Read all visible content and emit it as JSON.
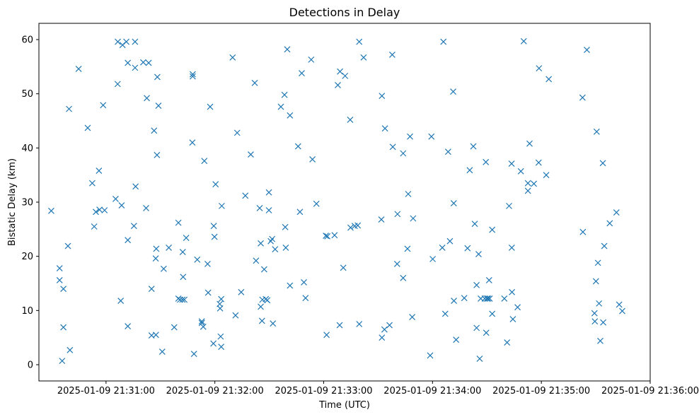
{
  "chart_data": {
    "type": "scatter",
    "title": "Detections in Delay",
    "xlabel": "Time (UTC)",
    "ylabel": "Bistatic Delay (km)",
    "marker": "x",
    "color": "#1f77b4",
    "grid": false,
    "x_unit": "seconds after 2025-01-09 21:31:00 UTC",
    "xlim": [
      -37,
      300
    ],
    "ylim": [
      -3,
      63
    ],
    "x_ticks": [
      {
        "value": 0,
        "label": "2025-01-09 21:31:00"
      },
      {
        "value": 60,
        "label": "2025-01-09 21:32:00"
      },
      {
        "value": 120,
        "label": "2025-01-09 21:33:00"
      },
      {
        "value": 180,
        "label": "2025-01-09 21:34:00"
      },
      {
        "value": 240,
        "label": "2025-01-09 21:35:00"
      },
      {
        "value": 300,
        "label": "2025-01-09 21:36:00"
      }
    ],
    "y_ticks": [
      {
        "value": 0,
        "label": "0"
      },
      {
        "value": 10,
        "label": "10"
      },
      {
        "value": 20,
        "label": "20"
      },
      {
        "value": 30,
        "label": "30"
      },
      {
        "value": 40,
        "label": "40"
      },
      {
        "value": 50,
        "label": "50"
      },
      {
        "value": 60,
        "label": "60"
      }
    ],
    "points": [
      [
        -30.2,
        28.4
      ],
      [
        -25.6,
        17.8
      ],
      [
        -25.6,
        15.6
      ],
      [
        -24.2,
        0.7
      ],
      [
        -23.5,
        6.9
      ],
      [
        -23.5,
        14.0
      ],
      [
        -21.0,
        21.9
      ],
      [
        -20.4,
        47.2
      ],
      [
        -19.9,
        2.7
      ],
      [
        -15.1,
        54.6
      ],
      [
        -10.1,
        43.7
      ],
      [
        -7.6,
        33.5
      ],
      [
        -6.5,
        25.5
      ],
      [
        -5.6,
        28.2
      ],
      [
        -3.9,
        35.8
      ],
      [
        -3.6,
        28.6
      ],
      [
        -0.8,
        28.5
      ],
      [
        -1.6,
        47.9
      ],
      [
        5.3,
        30.6
      ],
      [
        6.5,
        59.6
      ],
      [
        6.4,
        51.8
      ],
      [
        8.1,
        11.8
      ],
      [
        8.6,
        29.4
      ],
      [
        9.1,
        59.0
      ],
      [
        11.2,
        59.6
      ],
      [
        12.0,
        55.7
      ],
      [
        12.0,
        23.0
      ],
      [
        12.0,
        7.1
      ],
      [
        16.0,
        59.6
      ],
      [
        16.0,
        54.8
      ],
      [
        15.4,
        25.6
      ],
      [
        16.3,
        32.9
      ],
      [
        20.5,
        55.8
      ],
      [
        22.1,
        28.9
      ],
      [
        22.5,
        49.2
      ],
      [
        23.5,
        55.7
      ],
      [
        25.1,
        14.0
      ],
      [
        25.1,
        5.4
      ],
      [
        26.5,
        43.2
      ],
      [
        27.5,
        5.5
      ],
      [
        27.4,
        19.6
      ],
      [
        28.3,
        53.1
      ],
      [
        27.7,
        21.4
      ],
      [
        28.1,
        38.7
      ],
      [
        28.9,
        47.8
      ],
      [
        31.0,
        2.4
      ],
      [
        31.8,
        17.7
      ],
      [
        34.6,
        21.6
      ],
      [
        37.6,
        6.9
      ],
      [
        39.9,
        26.2
      ],
      [
        39.9,
        12.2
      ],
      [
        40.8,
        12.0
      ],
      [
        42.1,
        12.0
      ],
      [
        43.2,
        12.0
      ],
      [
        42.3,
        20.8
      ],
      [
        42.5,
        16.2
      ],
      [
        44.2,
        23.4
      ],
      [
        47.8,
        53.6
      ],
      [
        47.8,
        53.2
      ],
      [
        47.6,
        41.0
      ],
      [
        48.5,
        2.0
      ],
      [
        50.3,
        19.4
      ],
      [
        52.8,
        8.0
      ],
      [
        52.8,
        7.7
      ],
      [
        53.6,
        7.0
      ],
      [
        54.2,
        37.6
      ],
      [
        56.0,
        18.6
      ],
      [
        56.3,
        13.3
      ],
      [
        57.4,
        47.6
      ],
      [
        59.4,
        25.6
      ],
      [
        59.8,
        23.6
      ],
      [
        60.4,
        33.3
      ],
      [
        59.2,
        3.9
      ],
      [
        62.7,
        11.2
      ],
      [
        62.9,
        10.4
      ],
      [
        63.2,
        5.2
      ],
      [
        63.5,
        12.1
      ],
      [
        63.5,
        3.3
      ],
      [
        63.8,
        29.3
      ],
      [
        69.8,
        56.7
      ],
      [
        71.4,
        9.1
      ],
      [
        72.3,
        42.8
      ],
      [
        74.5,
        13.4
      ],
      [
        76.8,
        31.2
      ],
      [
        79.8,
        38.8
      ],
      [
        82.0,
        52.0
      ],
      [
        82.7,
        19.2
      ],
      [
        84.7,
        28.9
      ],
      [
        85.3,
        22.4
      ],
      [
        85.3,
        10.7
      ],
      [
        86.0,
        8.1
      ],
      [
        86.2,
        12.0
      ],
      [
        87.2,
        17.6
      ],
      [
        88.1,
        12.1
      ],
      [
        88.9,
        11.9
      ],
      [
        89.8,
        31.8
      ],
      [
        89.8,
        28.5
      ],
      [
        90.8,
        22.8
      ],
      [
        91.6,
        23.2
      ],
      [
        92.0,
        7.6
      ],
      [
        93.2,
        21.3
      ],
      [
        96.4,
        47.6
      ],
      [
        98.4,
        49.8
      ],
      [
        98.8,
        25.4
      ],
      [
        99.1,
        21.6
      ],
      [
        99.9,
        58.2
      ],
      [
        101.4,
        46.0
      ],
      [
        101.4,
        14.6
      ],
      [
        105.9,
        40.3
      ],
      [
        106.9,
        28.2
      ],
      [
        107.9,
        53.8
      ],
      [
        109.1,
        15.2
      ],
      [
        110.0,
        12.3
      ],
      [
        113.1,
        56.3
      ],
      [
        113.8,
        37.9
      ],
      [
        116.0,
        29.7
      ],
      [
        121.2,
        23.8
      ],
      [
        121.6,
        5.5
      ],
      [
        122.0,
        23.7
      ],
      [
        126.0,
        23.9
      ],
      [
        127.8,
        51.6
      ],
      [
        128.8,
        7.3
      ],
      [
        129.0,
        54.1
      ],
      [
        130.8,
        17.9
      ],
      [
        131.8,
        53.3
      ],
      [
        134.6,
        45.2
      ],
      [
        134.8,
        25.3
      ],
      [
        137.1,
        25.6
      ],
      [
        138.8,
        25.7
      ],
      [
        139.6,
        7.5
      ],
      [
        139.6,
        59.6
      ],
      [
        142.0,
        56.7
      ],
      [
        152.1,
        5.0
      ],
      [
        152.1,
        49.6
      ],
      [
        151.8,
        26.8
      ],
      [
        153.8,
        43.6
      ],
      [
        153.5,
        6.5
      ],
      [
        156.3,
        7.3
      ],
      [
        157.8,
        57.2
      ],
      [
        158.1,
        40.2
      ],
      [
        160.7,
        27.8
      ],
      [
        160.5,
        18.6
      ],
      [
        163.8,
        39.0
      ],
      [
        163.8,
        16.0
      ],
      [
        166.6,
        31.5
      ],
      [
        166.2,
        21.4
      ],
      [
        167.6,
        42.1
      ],
      [
        168.8,
        8.8
      ],
      [
        169.3,
        27.0
      ],
      [
        179.4,
        42.1
      ],
      [
        178.7,
        1.7
      ],
      [
        180.1,
        19.5
      ],
      [
        186.0,
        59.6
      ],
      [
        185.4,
        21.6
      ],
      [
        187.0,
        9.4
      ],
      [
        188.6,
        39.3
      ],
      [
        189.6,
        22.8
      ],
      [
        191.4,
        50.4
      ],
      [
        191.7,
        29.8
      ],
      [
        191.8,
        11.8
      ],
      [
        193.0,
        4.6
      ],
      [
        197.5,
        12.3
      ],
      [
        199.3,
        21.5
      ],
      [
        200.5,
        35.9
      ],
      [
        202.5,
        40.3
      ],
      [
        203.3,
        26.0
      ],
      [
        204.3,
        6.8
      ],
      [
        204.3,
        14.7
      ],
      [
        205.4,
        20.4
      ],
      [
        206.0,
        1.1
      ],
      [
        206.6,
        12.2
      ],
      [
        208.8,
        12.2
      ],
      [
        210.0,
        12.2
      ],
      [
        210.6,
        12.2
      ],
      [
        209.4,
        37.4
      ],
      [
        209.6,
        5.9
      ],
      [
        211.2,
        15.6
      ],
      [
        211.5,
        12.2
      ],
      [
        212.9,
        9.4
      ],
      [
        212.9,
        24.9
      ],
      [
        219.6,
        12.2
      ],
      [
        221.1,
        4.1
      ],
      [
        222.2,
        29.3
      ],
      [
        223.6,
        37.1
      ],
      [
        223.7,
        21.6
      ],
      [
        223.8,
        13.4
      ],
      [
        224.3,
        8.4
      ],
      [
        226.9,
        10.6
      ],
      [
        228.7,
        35.7
      ],
      [
        230.3,
        59.7
      ],
      [
        232.6,
        33.5
      ],
      [
        232.6,
        32.1
      ],
      [
        233.5,
        40.8
      ],
      [
        235.9,
        33.4
      ],
      [
        238.5,
        37.3
      ],
      [
        238.7,
        54.7
      ],
      [
        242.7,
        35.0
      ],
      [
        244.1,
        52.7
      ],
      [
        262.7,
        49.3
      ],
      [
        262.9,
        24.5
      ],
      [
        265.1,
        58.1
      ],
      [
        269.3,
        9.5
      ],
      [
        269.5,
        8.0
      ],
      [
        270.1,
        15.4
      ],
      [
        270.5,
        43.0
      ],
      [
        271.8,
        11.3
      ],
      [
        271.2,
        18.8
      ],
      [
        272.5,
        4.4
      ],
      [
        273.9,
        37.2
      ],
      [
        274.1,
        7.8
      ],
      [
        274.7,
        21.9
      ],
      [
        277.7,
        26.1
      ],
      [
        281.4,
        28.1
      ],
      [
        282.9,
        11.1
      ],
      [
        284.6,
        9.9
      ]
    ]
  }
}
